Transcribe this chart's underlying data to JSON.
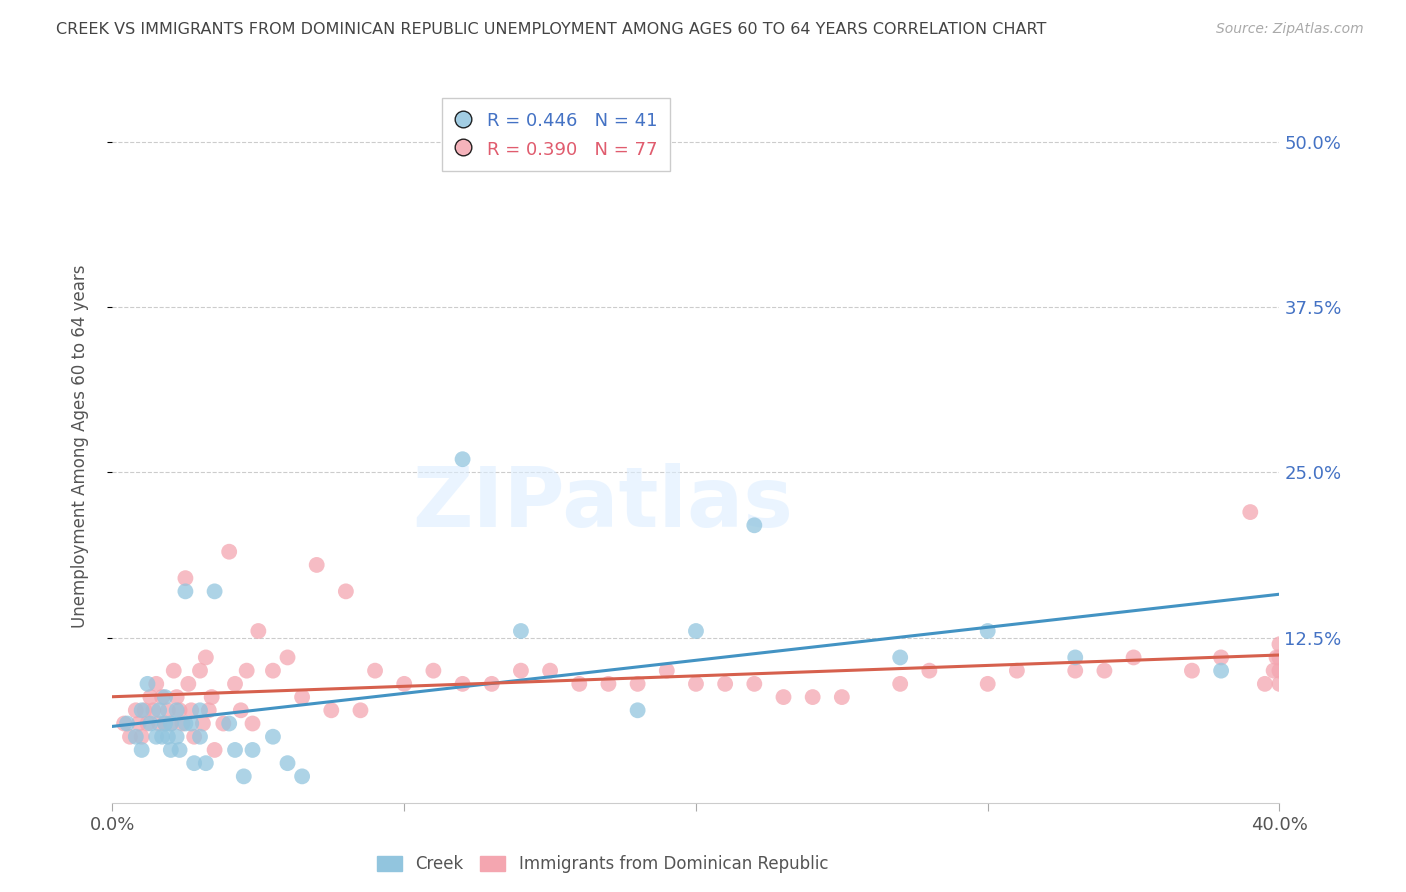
{
  "title": "CREEK VS IMMIGRANTS FROM DOMINICAN REPUBLIC UNEMPLOYMENT AMONG AGES 60 TO 64 YEARS CORRELATION CHART",
  "source": "Source: ZipAtlas.com",
  "ylabel": "Unemployment Among Ages 60 to 64 years",
  "ytick_labels": [
    "50.0%",
    "37.5%",
    "25.0%",
    "12.5%"
  ],
  "ytick_values": [
    0.5,
    0.375,
    0.25,
    0.125
  ],
  "xlim": [
    0.0,
    0.4
  ],
  "ylim": [
    0.0,
    0.54
  ],
  "legend_creek_R": "0.446",
  "legend_creek_N": "41",
  "legend_dr_R": "0.390",
  "legend_dr_N": "77",
  "creek_color": "#92c5de",
  "dr_color": "#f4a6b0",
  "creek_line_color": "#4393c3",
  "dr_line_color": "#d6604d",
  "legend_label_creek": "Creek",
  "legend_label_dr": "Immigrants from Dominican Republic",
  "background_color": "#ffffff",
  "grid_color": "#cccccc",
  "title_color": "#444444",
  "right_axis_label_color": "#4472c4",
  "creek_scatter_x": [
    0.005,
    0.008,
    0.01,
    0.01,
    0.012,
    0.013,
    0.015,
    0.016,
    0.017,
    0.018,
    0.018,
    0.019,
    0.02,
    0.02,
    0.022,
    0.022,
    0.023,
    0.025,
    0.025,
    0.027,
    0.028,
    0.03,
    0.03,
    0.032,
    0.035,
    0.04,
    0.042,
    0.045,
    0.048,
    0.055,
    0.06,
    0.065,
    0.12,
    0.14,
    0.18,
    0.2,
    0.22,
    0.27,
    0.3,
    0.33,
    0.38
  ],
  "creek_scatter_y": [
    0.06,
    0.05,
    0.07,
    0.04,
    0.09,
    0.06,
    0.05,
    0.07,
    0.05,
    0.08,
    0.06,
    0.05,
    0.06,
    0.04,
    0.07,
    0.05,
    0.04,
    0.16,
    0.06,
    0.06,
    0.03,
    0.07,
    0.05,
    0.03,
    0.16,
    0.06,
    0.04,
    0.02,
    0.04,
    0.05,
    0.03,
    0.02,
    0.26,
    0.13,
    0.07,
    0.13,
    0.21,
    0.11,
    0.13,
    0.11,
    0.1
  ],
  "dr_scatter_x": [
    0.004,
    0.006,
    0.008,
    0.009,
    0.01,
    0.011,
    0.012,
    0.013,
    0.014,
    0.015,
    0.016,
    0.017,
    0.018,
    0.019,
    0.02,
    0.021,
    0.022,
    0.023,
    0.024,
    0.025,
    0.026,
    0.027,
    0.028,
    0.03,
    0.031,
    0.032,
    0.033,
    0.034,
    0.035,
    0.038,
    0.04,
    0.042,
    0.044,
    0.046,
    0.048,
    0.05,
    0.055,
    0.06,
    0.065,
    0.07,
    0.075,
    0.08,
    0.085,
    0.09,
    0.1,
    0.11,
    0.12,
    0.13,
    0.14,
    0.15,
    0.16,
    0.17,
    0.18,
    0.19,
    0.2,
    0.21,
    0.22,
    0.23,
    0.24,
    0.25,
    0.27,
    0.28,
    0.3,
    0.31,
    0.33,
    0.34,
    0.35,
    0.37,
    0.38,
    0.39,
    0.395,
    0.398,
    0.399,
    0.4,
    0.4,
    0.4,
    0.4
  ],
  "dr_scatter_y": [
    0.06,
    0.05,
    0.07,
    0.06,
    0.05,
    0.07,
    0.06,
    0.08,
    0.07,
    0.09,
    0.06,
    0.08,
    0.06,
    0.07,
    0.06,
    0.1,
    0.08,
    0.07,
    0.06,
    0.17,
    0.09,
    0.07,
    0.05,
    0.1,
    0.06,
    0.11,
    0.07,
    0.08,
    0.04,
    0.06,
    0.19,
    0.09,
    0.07,
    0.1,
    0.06,
    0.13,
    0.1,
    0.11,
    0.08,
    0.18,
    0.07,
    0.16,
    0.07,
    0.1,
    0.09,
    0.1,
    0.09,
    0.09,
    0.1,
    0.1,
    0.09,
    0.09,
    0.09,
    0.1,
    0.09,
    0.09,
    0.09,
    0.08,
    0.08,
    0.08,
    0.09,
    0.1,
    0.09,
    0.1,
    0.1,
    0.1,
    0.11,
    0.1,
    0.11,
    0.22,
    0.09,
    0.1,
    0.11,
    0.12,
    0.09,
    0.1,
    0.11
  ],
  "watermark_zip": "ZIP",
  "watermark_atlas": "atlas",
  "watermark_dot": "·"
}
